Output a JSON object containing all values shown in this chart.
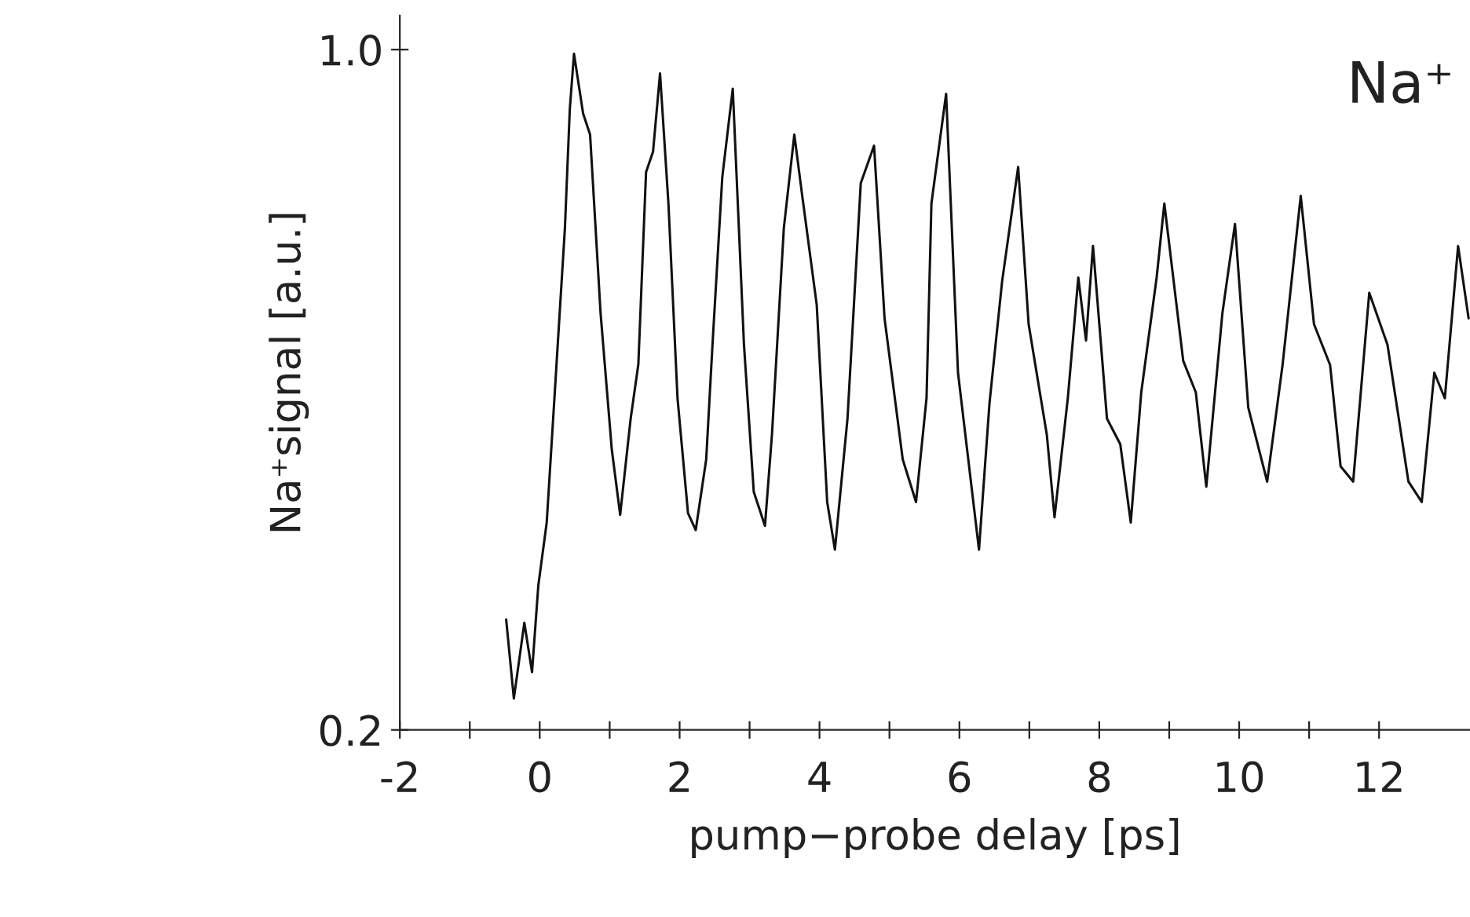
{
  "chart_data": {
    "type": "line",
    "xlabel": "pump−probe delay [ps]",
    "ylabel": "Na⁺signal [a.u.]",
    "annotations": [
      "Na⁺"
    ],
    "xlim": [
      -2,
      13.3
    ],
    "ylim": [
      0.2,
      1.04
    ],
    "xticks": [
      -2,
      {
        "value": -1,
        "label": null
      },
      0,
      {
        "value": 1,
        "label": null
      },
      2,
      {
        "value": 3,
        "label": null
      },
      4,
      {
        "value": 5,
        "label": null
      },
      6,
      {
        "value": 7,
        "label": null
      },
      8,
      {
        "value": 9,
        "label": null
      },
      10,
      {
        "value": 11,
        "label": null
      },
      12
    ],
    "yticks": [
      {
        "value": 0.2,
        "label": "0.2"
      },
      {
        "value": 1.0,
        "label": "1.0"
      }
    ],
    "grid": false,
    "legend": false,
    "marker": "none",
    "line_style": "solid",
    "series": [
      {
        "color": "#111111",
        "x": [
          -0.48,
          -0.37,
          -0.22,
          -0.11,
          -0.02,
          0.1,
          0.21,
          0.36,
          0.43,
          0.49,
          0.62,
          0.72,
          0.87,
          1.03,
          1.15,
          1.3,
          1.41,
          1.52,
          1.62,
          1.72,
          1.84,
          1.97,
          2.12,
          2.23,
          2.38,
          2.47,
          2.61,
          2.76,
          2.92,
          3.06,
          3.22,
          3.32,
          3.49,
          3.64,
          3.75,
          3.96,
          4.11,
          4.22,
          4.4,
          4.59,
          4.78,
          4.93,
          5.19,
          5.38,
          5.53,
          5.6,
          5.81,
          5.98,
          6.28,
          6.43,
          6.61,
          6.84,
          6.99,
          7.25,
          7.36,
          7.55,
          7.7,
          7.81,
          7.91,
          8.11,
          8.3,
          8.45,
          8.6,
          8.82,
          8.93,
          9.2,
          9.38,
          9.53,
          9.76,
          9.94,
          10.13,
          10.4,
          10.62,
          10.88,
          11.07,
          11.3,
          11.45,
          11.63,
          11.86,
          12.12,
          12.42,
          12.61,
          12.79,
          12.94,
          13.13,
          13.28
        ],
        "values": [
          0.33,
          0.237,
          0.326,
          0.268,
          0.37,
          0.444,
          0.59,
          0.79,
          0.93,
          0.995,
          0.925,
          0.9,
          0.69,
          0.53,
          0.453,
          0.566,
          0.63,
          0.856,
          0.88,
          0.972,
          0.819,
          0.59,
          0.455,
          0.435,
          0.518,
          0.653,
          0.85,
          0.954,
          0.653,
          0.48,
          0.44,
          0.547,
          0.79,
          0.9,
          0.83,
          0.7,
          0.468,
          0.412,
          0.566,
          0.843,
          0.887,
          0.684,
          0.518,
          0.468,
          0.59,
          0.819,
          0.948,
          0.62,
          0.412,
          0.584,
          0.727,
          0.862,
          0.677,
          0.547,
          0.45,
          0.59,
          0.732,
          0.658,
          0.769,
          0.566,
          0.536,
          0.444,
          0.597,
          0.732,
          0.819,
          0.634,
          0.597,
          0.486,
          0.69,
          0.795,
          0.579,
          0.492,
          0.629,
          0.828,
          0.677,
          0.629,
          0.51,
          0.492,
          0.714,
          0.653,
          0.492,
          0.468,
          0.62,
          0.59,
          0.769,
          0.684
        ]
      }
    ]
  }
}
